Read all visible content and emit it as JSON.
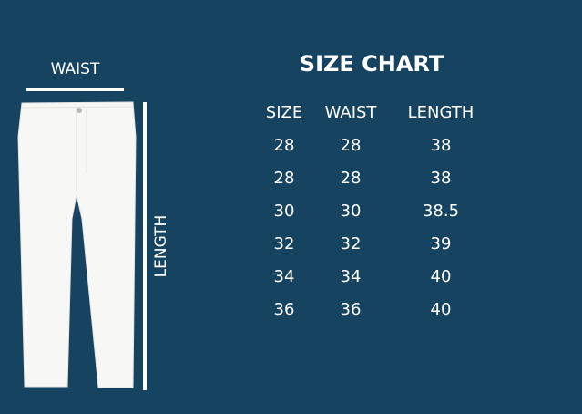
{
  "diagram": {
    "waist_label": "WAIST",
    "length_label": "LENGTH"
  },
  "chart": {
    "title": "SIZE CHART",
    "headers": [
      "SIZE",
      "WAIST",
      "LENGTH"
    ],
    "rows": [
      [
        "28",
        "28",
        "38"
      ],
      [
        "28",
        "28",
        "38"
      ],
      [
        "30",
        "30",
        "38.5"
      ],
      [
        "32",
        "32",
        "39"
      ],
      [
        "34",
        "34",
        "40"
      ],
      [
        "36",
        "36",
        "40"
      ]
    ]
  },
  "colors": {
    "background": "#16435f",
    "foreground": "#ffffff"
  }
}
